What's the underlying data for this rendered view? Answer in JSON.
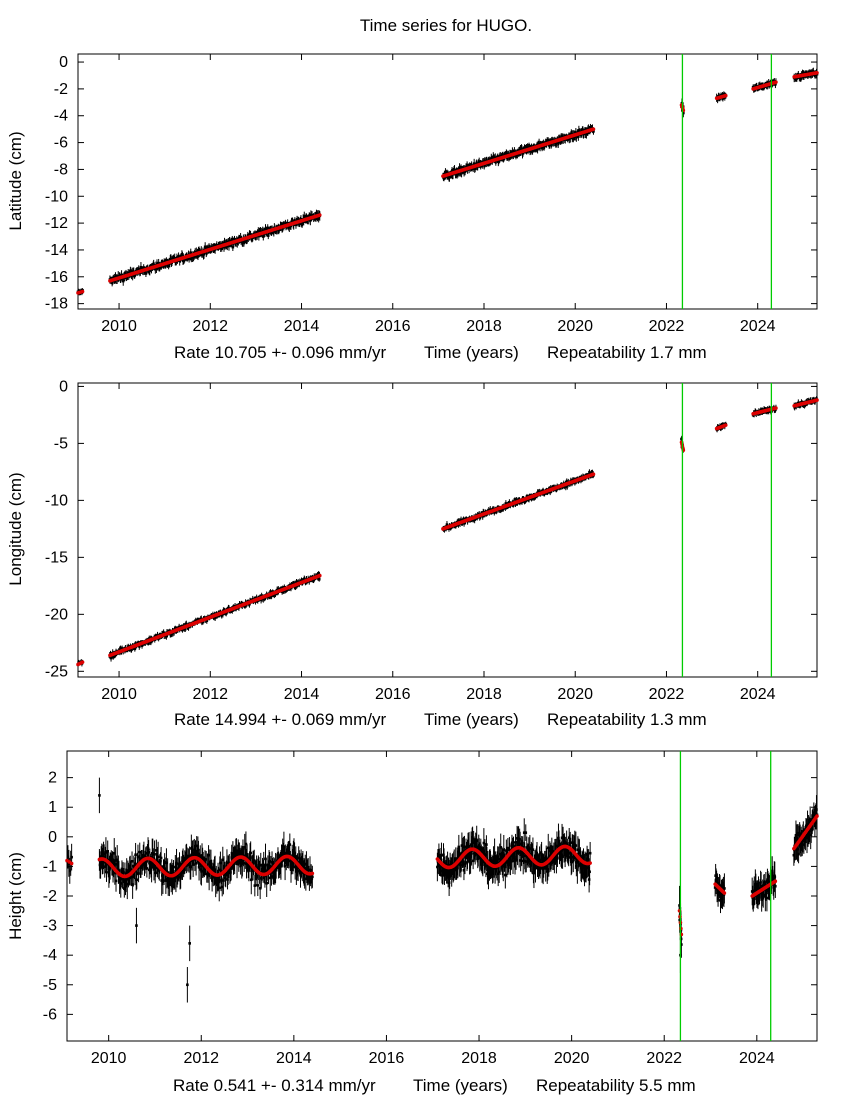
{
  "title": "Time series for HUGO.",
  "colors": {
    "observations": "#000000",
    "model": "#dd0000",
    "event_lines": "#00cc00"
  },
  "chart_data": [
    {
      "type": "scatter",
      "name": "latitude",
      "ylabel": "Latitude (cm)",
      "xlabel_parts": {
        "rate": "Rate 10.705 +- 0.096 mm/yr",
        "axis": "Time (years)",
        "repeatability": "Repeatability 1.7 mm"
      },
      "xlim": [
        2009.1,
        2025.3
      ],
      "ylim": [
        -18.4,
        0.6
      ],
      "xticks": [
        2010,
        2012,
        2014,
        2016,
        2018,
        2020,
        2022,
        2024
      ],
      "xtick_labels": [
        "2010",
        "2012",
        "2014",
        "2016",
        "2018",
        "2020",
        "2022",
        "2024"
      ],
      "yticks": [
        0,
        -2,
        -4,
        -6,
        -8,
        -10,
        -12,
        -14,
        -16,
        -18
      ],
      "ytick_labels": [
        "0",
        "-2",
        "-4",
        "-6",
        "-8",
        "-10",
        "-12",
        "-14",
        "-16",
        "-18"
      ],
      "event_lines": [
        2022.35,
        2024.3
      ],
      "rate_mm_yr": 10.705,
      "rate_sigma_mm_yr": 0.096,
      "repeatability_mm": 1.7,
      "segments": [
        {
          "x0": 2009.1,
          "x1": 2009.2,
          "y0": -17.2,
          "y1": -17.1,
          "noise": 0.15,
          "err": 0.2,
          "n": 8
        },
        {
          "x0": 2009.8,
          "x1": 2014.4,
          "y0": -16.3,
          "y1": -11.4,
          "noise": 0.25,
          "err": 0.3,
          "n": 380
        },
        {
          "x0": 2017.1,
          "x1": 2020.4,
          "y0": -8.5,
          "y1": -5.0,
          "noise": 0.22,
          "err": 0.3,
          "n": 300
        },
        {
          "x0": 2022.33,
          "x1": 2022.37,
          "y0": -3.2,
          "y1": -3.6,
          "noise": 0.2,
          "err": 0.3,
          "n": 10
        },
        {
          "x0": 2023.1,
          "x1": 2023.3,
          "y0": -2.7,
          "y1": -2.5,
          "noise": 0.12,
          "err": 0.25,
          "n": 20
        },
        {
          "x0": 2023.9,
          "x1": 2024.4,
          "y0": -2.0,
          "y1": -1.5,
          "noise": 0.15,
          "err": 0.25,
          "n": 45
        },
        {
          "x0": 2024.8,
          "x1": 2025.3,
          "y0": -1.1,
          "y1": -0.8,
          "noise": 0.15,
          "err": 0.25,
          "n": 45
        }
      ]
    },
    {
      "type": "scatter",
      "name": "longitude",
      "ylabel": "Longitude (cm)",
      "xlabel_parts": {
        "rate": "Rate 14.994 +- 0.069 mm/yr",
        "axis": "Time (years)",
        "repeatability": "Repeatability 1.3 mm"
      },
      "xlim": [
        2009.1,
        2025.3
      ],
      "ylim": [
        -25.5,
        0.3
      ],
      "xticks": [
        2010,
        2012,
        2014,
        2016,
        2018,
        2020,
        2022,
        2024
      ],
      "xtick_labels": [
        "2010",
        "2012",
        "2014",
        "2016",
        "2018",
        "2020",
        "2022",
        "2024"
      ],
      "yticks": [
        0,
        -5,
        -10,
        -15,
        -20,
        -25
      ],
      "ytick_labels": [
        "0",
        "-5",
        "-10",
        "-15",
        "-20",
        "-25"
      ],
      "event_lines": [
        2022.35,
        2024.3
      ],
      "rate_mm_yr": 14.994,
      "rate_sigma_mm_yr": 0.069,
      "repeatability_mm": 1.3,
      "segments": [
        {
          "x0": 2009.1,
          "x1": 2009.2,
          "y0": -24.4,
          "y1": -24.2,
          "noise": 0.15,
          "err": 0.2,
          "n": 8
        },
        {
          "x0": 2009.8,
          "x1": 2014.4,
          "y0": -23.6,
          "y1": -16.6,
          "noise": 0.22,
          "err": 0.25,
          "n": 380
        },
        {
          "x0": 2017.1,
          "x1": 2020.4,
          "y0": -12.5,
          "y1": -7.7,
          "noise": 0.2,
          "err": 0.25,
          "n": 300
        },
        {
          "x0": 2022.33,
          "x1": 2022.37,
          "y0": -4.9,
          "y1": -5.6,
          "noise": 0.3,
          "err": 0.3,
          "n": 10
        },
        {
          "x0": 2023.1,
          "x1": 2023.3,
          "y0": -3.7,
          "y1": -3.4,
          "noise": 0.15,
          "err": 0.25,
          "n": 20
        },
        {
          "x0": 2023.9,
          "x1": 2024.4,
          "y0": -2.4,
          "y1": -1.9,
          "noise": 0.15,
          "err": 0.25,
          "n": 45
        },
        {
          "x0": 2024.8,
          "x1": 2025.3,
          "y0": -1.7,
          "y1": -1.2,
          "noise": 0.15,
          "err": 0.25,
          "n": 45
        }
      ]
    },
    {
      "type": "scatter",
      "name": "height",
      "ylabel": "Height (cm)",
      "xlabel_parts": {
        "rate": "Rate 0.541 +- 0.314 mm/yr",
        "axis": "Time (years)",
        "repeatability": "Repeatability 5.5 mm"
      },
      "xlim": [
        2009.1,
        2025.3
      ],
      "ylim": [
        -6.9,
        2.9
      ],
      "xticks": [
        2010,
        2012,
        2014,
        2016,
        2018,
        2020,
        2022,
        2024
      ],
      "xtick_labels": [
        "2010",
        "2012",
        "2014",
        "2016",
        "2018",
        "2020",
        "2022",
        "2024"
      ],
      "yticks": [
        2,
        1,
        0,
        -1,
        -2,
        -3,
        -4,
        -5,
        -6
      ],
      "ytick_labels": [
        "2",
        "1",
        "0",
        "-1",
        "-2",
        "-3",
        "-4",
        "-5",
        "-6"
      ],
      "event_lines": [
        2022.35,
        2024.3
      ],
      "rate_mm_yr": 0.541,
      "rate_sigma_mm_yr": 0.314,
      "repeatability_mm": 5.5,
      "seasonal_amplitude_cm": 0.3,
      "segments": [
        {
          "x0": 2009.1,
          "x1": 2009.2,
          "y0": -0.8,
          "y1": -0.9,
          "noise": 0.3,
          "err": 0.4,
          "n": 6,
          "seasonal": false
        },
        {
          "x0": 2009.8,
          "x1": 2014.4,
          "y0": -1.05,
          "y1": -0.95,
          "noise": 0.45,
          "err": 0.4,
          "n": 360,
          "seasonal": true
        },
        {
          "x0": 2017.1,
          "x1": 2020.4,
          "y0": -0.75,
          "y1": -0.6,
          "noise": 0.45,
          "err": 0.4,
          "n": 300,
          "seasonal": true
        },
        {
          "x0": 2022.33,
          "x1": 2022.37,
          "y0": -2.5,
          "y1": -3.3,
          "noise": 0.6,
          "err": 0.6,
          "n": 10,
          "seasonal": false
        },
        {
          "x0": 2023.1,
          "x1": 2023.3,
          "y0": -1.6,
          "y1": -1.9,
          "noise": 0.35,
          "err": 0.4,
          "n": 20,
          "seasonal": false
        },
        {
          "x0": 2023.9,
          "x1": 2024.4,
          "y0": -2.0,
          "y1": -1.5,
          "noise": 0.4,
          "err": 0.4,
          "n": 45,
          "seasonal": false
        },
        {
          "x0": 2024.8,
          "x1": 2025.3,
          "y0": -0.4,
          "y1": 0.7,
          "noise": 0.35,
          "err": 0.4,
          "n": 45,
          "seasonal": false
        }
      ],
      "outliers": [
        {
          "x": 2009.8,
          "y": 1.4
        },
        {
          "x": 2010.6,
          "y": -3.0
        },
        {
          "x": 2011.7,
          "y": -5.0
        },
        {
          "x": 2011.75,
          "y": -3.6
        },
        {
          "x": 2022.35,
          "y": -4.0
        }
      ]
    }
  ]
}
